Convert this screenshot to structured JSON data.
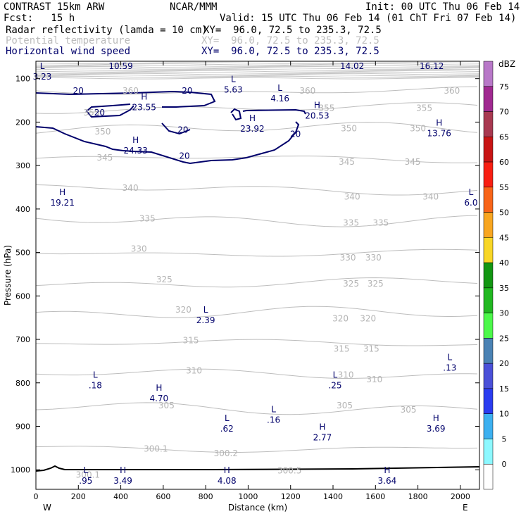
{
  "header": {
    "model": "CONTRAST 15km ARW",
    "center": "NCAR/MMM",
    "init": "Init: 00 UTC Thu 06 Feb 14",
    "fcst": "Fcst:   15 h",
    "valid": "Valid: 15 UTC Thu 06 Feb 14 (01 ChT Fri 07 Feb 14)",
    "fields": [
      {
        "name": "Radar reflectivity (lamda = 10 cm)",
        "xy": "XY=  96.0, 72.5 to 235.3, 72.5",
        "color": "#000000"
      },
      {
        "name": "Potential temperature",
        "xy": "XY=  96.0, 72.5 to 235.3, 72.5",
        "color": "#bdbdbd"
      },
      {
        "name": "Horizontal wind speed",
        "xy": "XY=  96.0, 72.5 to 235.3, 72.5",
        "color": "#00006b"
      }
    ]
  },
  "chart_data": {
    "type": "contour",
    "xlabel": "Distance (km)",
    "ylabel": "Pressure (hPa)",
    "xlim": [
      0,
      2090
    ],
    "ylim": [
      1045,
      60
    ],
    "x_ticks": [
      0,
      200,
      400,
      600,
      800,
      1000,
      1200,
      1400,
      1600,
      1800,
      2000
    ],
    "y_ticks": [
      100,
      200,
      300,
      400,
      500,
      600,
      700,
      800,
      900,
      1000
    ],
    "end_labels": {
      "left": "W",
      "right": "E"
    },
    "colorbar": {
      "unit": "dBZ",
      "levels": [
        "0",
        "5",
        "10",
        "15",
        "20",
        "25",
        "30",
        "35",
        "40",
        "45",
        "50",
        "55",
        "60",
        "65",
        "70",
        "75"
      ],
      "colors": [
        "#ffffff",
        "#8cf8ff",
        "#3cb0f0",
        "#2a3cf0",
        "#4a50d8",
        "#4a82b4",
        "#4cf84a",
        "#21b821",
        "#129612",
        "#f8d626",
        "#f8a620",
        "#f86418",
        "#f81e12",
        "#c81414",
        "#a83850",
        "#a02890",
        "#b878c8"
      ]
    },
    "theta_labels": [
      {
        "x": 446,
        "p": 128,
        "text": "360"
      },
      {
        "x": 1280,
        "p": 128,
        "text": "360"
      },
      {
        "x": 1960,
        "p": 128,
        "text": "360"
      },
      {
        "x": 262,
        "p": 178,
        "text": "355"
      },
      {
        "x": 1370,
        "p": 168,
        "text": "355"
      },
      {
        "x": 1830,
        "p": 168,
        "text": "355"
      },
      {
        "x": 315,
        "p": 222,
        "text": "350"
      },
      {
        "x": 1475,
        "p": 215,
        "text": "350"
      },
      {
        "x": 1800,
        "p": 215,
        "text": "350"
      },
      {
        "x": 325,
        "p": 282,
        "text": "345"
      },
      {
        "x": 1465,
        "p": 292,
        "text": "345"
      },
      {
        "x": 1775,
        "p": 292,
        "text": "345"
      },
      {
        "x": 445,
        "p": 352,
        "text": "340"
      },
      {
        "x": 1490,
        "p": 372,
        "text": "340"
      },
      {
        "x": 1860,
        "p": 372,
        "text": "340"
      },
      {
        "x": 525,
        "p": 422,
        "text": "335"
      },
      {
        "x": 1485,
        "p": 432,
        "text": "335"
      },
      {
        "x": 1625,
        "p": 432,
        "text": "335"
      },
      {
        "x": 485,
        "p": 492,
        "text": "330"
      },
      {
        "x": 1470,
        "p": 512,
        "text": "330"
      },
      {
        "x": 1590,
        "p": 512,
        "text": "330"
      },
      {
        "x": 605,
        "p": 562,
        "text": "325"
      },
      {
        "x": 1485,
        "p": 572,
        "text": "325"
      },
      {
        "x": 1600,
        "p": 572,
        "text": "325"
      },
      {
        "x": 695,
        "p": 632,
        "text": "320"
      },
      {
        "x": 1435,
        "p": 652,
        "text": "320"
      },
      {
        "x": 1565,
        "p": 652,
        "text": "320"
      },
      {
        "x": 730,
        "p": 702,
        "text": "315"
      },
      {
        "x": 1440,
        "p": 722,
        "text": "315"
      },
      {
        "x": 1580,
        "p": 722,
        "text": "315"
      },
      {
        "x": 745,
        "p": 772,
        "text": "310"
      },
      {
        "x": 1460,
        "p": 782,
        "text": "310"
      },
      {
        "x": 1595,
        "p": 792,
        "text": "310"
      },
      {
        "x": 615,
        "p": 852,
        "text": "305"
      },
      {
        "x": 1455,
        "p": 852,
        "text": "305"
      },
      {
        "x": 1755,
        "p": 862,
        "text": "305"
      },
      {
        "x": 565,
        "p": 952,
        "text": "300.1"
      },
      {
        "x": 895,
        "p": 962,
        "text": "300.2"
      },
      {
        "x": 1195,
        "p": 1002,
        "text": "300.5"
      },
      {
        "x": 245,
        "p": 1012,
        "text": "300.1"
      }
    ],
    "wind_labels": [
      {
        "x": 200,
        "p": 128,
        "text": "20"
      },
      {
        "x": 713,
        "p": 128,
        "text": "20"
      },
      {
        "x": 300,
        "p": 178,
        "text": "20"
      },
      {
        "x": 693,
        "p": 218,
        "text": "20"
      },
      {
        "x": 1223,
        "p": 228,
        "text": "20"
      },
      {
        "x": 700,
        "p": 278,
        "text": "20"
      }
    ],
    "wind_extrema": [
      {
        "type": "L",
        "x": 30,
        "p": 78,
        "value": "3.23"
      },
      {
        "type": "",
        "x": 400,
        "p": 78,
        "value": "10.59"
      },
      {
        "type": "",
        "x": 1490,
        "p": 78,
        "value": "14.02"
      },
      {
        "type": "",
        "x": 1865,
        "p": 78,
        "value": "16.12"
      },
      {
        "type": "L",
        "x": 930,
        "p": 108,
        "value": "5.63"
      },
      {
        "type": "L",
        "x": 1150,
        "p": 128,
        "value": "4.16"
      },
      {
        "type": "H",
        "x": 510,
        "p": 148,
        "value": "23.55"
      },
      {
        "type": "H",
        "x": 1325,
        "p": 168,
        "value": "20.53"
      },
      {
        "type": "H",
        "x": 1020,
        "p": 198,
        "value": "23.92"
      },
      {
        "type": "H",
        "x": 470,
        "p": 248,
        "value": "24.33"
      },
      {
        "type": "H",
        "x": 1900,
        "p": 208,
        "value": "13.76"
      },
      {
        "type": "H",
        "x": 125,
        "p": 368,
        "value": "19.21"
      },
      {
        "type": "L",
        "x": 2050,
        "p": 368,
        "value": "6.0"
      },
      {
        "type": "L",
        "x": 800,
        "p": 638,
        "value": "2.39"
      },
      {
        "type": "L",
        "x": 280,
        "p": 788,
        "value": ".18"
      },
      {
        "type": "H",
        "x": 580,
        "p": 818,
        "value": "4.70"
      },
      {
        "type": "L",
        "x": 1410,
        "p": 788,
        "value": ".25"
      },
      {
        "type": "L",
        "x": 1950,
        "p": 748,
        "value": ".13"
      },
      {
        "type": "L",
        "x": 1120,
        "p": 868,
        "value": ".16"
      },
      {
        "type": "L",
        "x": 900,
        "p": 888,
        "value": ".62"
      },
      {
        "type": "H",
        "x": 1885,
        "p": 888,
        "value": "3.69"
      },
      {
        "type": "H",
        "x": 1350,
        "p": 908,
        "value": "2.77"
      },
      {
        "type": "L",
        "x": 235,
        "p": 1008,
        "value": ".95"
      },
      {
        "type": "H",
        "x": 410,
        "p": 1008,
        "value": "3.49"
      },
      {
        "type": "H",
        "x": 900,
        "p": 1008,
        "value": "4.08"
      },
      {
        "type": "H",
        "x": 1655,
        "p": 1008,
        "value": "3.64"
      }
    ],
    "series": [
      {
        "name": "Potential temperature",
        "color": "#bdbdbd"
      },
      {
        "name": "Horizontal wind speed",
        "color": "#00006b"
      }
    ]
  }
}
